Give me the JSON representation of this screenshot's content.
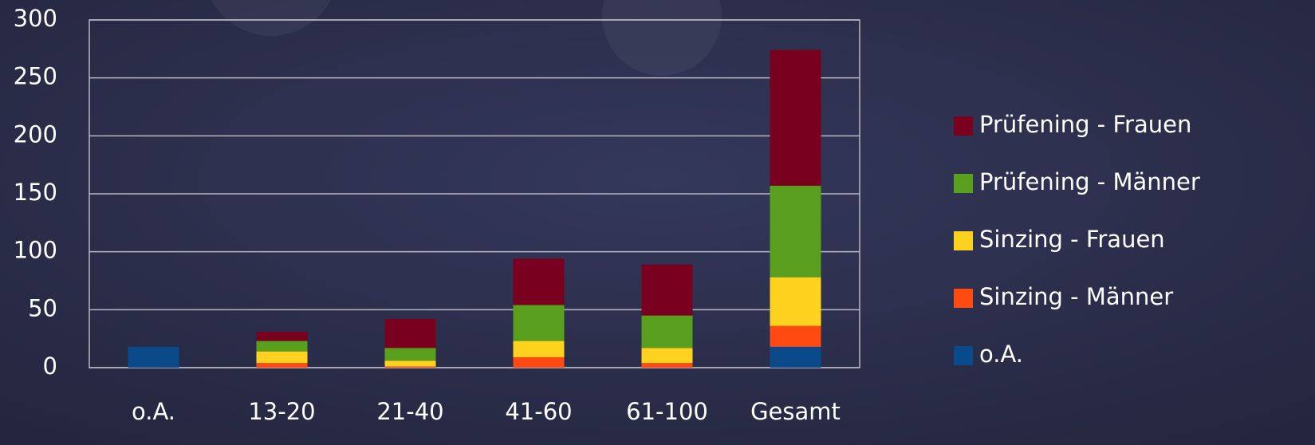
{
  "chart_data": {
    "type": "stacked_bar",
    "categories": [
      "o.A.",
      "13-20",
      "21-40",
      "41-60",
      "61-100",
      "Gesamt"
    ],
    "series": [
      {
        "name": "o.A.",
        "color": "#0b4a8a",
        "values": [
          18,
          0,
          0,
          0,
          0,
          18
        ]
      },
      {
        "name": "Sinzing - Männer",
        "color": "#ff4a12",
        "values": [
          0,
          4,
          1,
          9,
          4,
          18
        ]
      },
      {
        "name": "Sinzing - Frauen",
        "color": "#ffd21f",
        "values": [
          0,
          10,
          5,
          14,
          13,
          42
        ]
      },
      {
        "name": "Prüfening - Männer",
        "color": "#5a9e1e",
        "values": [
          0,
          9,
          11,
          31,
          28,
          79
        ]
      },
      {
        "name": "Prüfening - Frauen",
        "color": "#7a0020",
        "values": [
          0,
          8,
          25,
          40,
          44,
          117
        ]
      }
    ],
    "ylim": [
      0,
      300
    ],
    "yticks": [
      0,
      50,
      100,
      150,
      200,
      250,
      300
    ],
    "grid": true,
    "legend": "right"
  }
}
